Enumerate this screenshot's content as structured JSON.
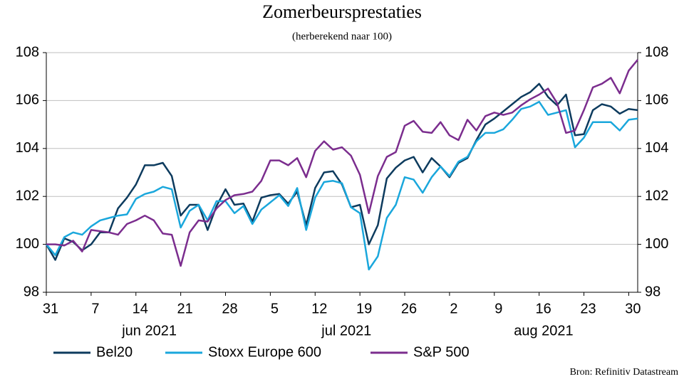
{
  "chart_data": {
    "type": "line",
    "title": "Zomerbeursprestaties",
    "subtitle": "(herberekend naar 100)",
    "source": "Bron: Refinitiv Datastream",
    "categories": [
      "31",
      null,
      null,
      null,
      null,
      "7",
      null,
      null,
      null,
      null,
      "14",
      null,
      null,
      null,
      null,
      "21",
      null,
      null,
      null,
      null,
      "28",
      null,
      null,
      null,
      null,
      "5",
      null,
      null,
      null,
      null,
      "12",
      null,
      null,
      null,
      null,
      "19",
      null,
      null,
      null,
      null,
      "26",
      null,
      null,
      null,
      null,
      "2",
      null,
      null,
      null,
      null,
      "9",
      null,
      null,
      null,
      null,
      "16",
      null,
      null,
      null,
      null,
      "23",
      null,
      null,
      null,
      null,
      "30",
      null
    ],
    "month_labels": [
      "jun 2021",
      "jul 2021",
      "aug 2021"
    ],
    "ylim": [
      98,
      108
    ],
    "yticks": [
      98,
      100,
      102,
      104,
      106,
      108
    ],
    "y2lim": [
      98,
      108
    ],
    "y2ticks": [
      98,
      100,
      102,
      104,
      106,
      108
    ],
    "grid": true,
    "legend": "bottom",
    "series": [
      {
        "name": "Bel20",
        "color": "#0d3b5e",
        "values": [
          100,
          99.35,
          100.25,
          100.1,
          99.75,
          100.0,
          100.5,
          100.5,
          101.5,
          101.95,
          102.5,
          103.3,
          103.3,
          103.4,
          102.85,
          101.2,
          101.65,
          101.65,
          100.6,
          101.6,
          102.3,
          101.65,
          101.7,
          100.95,
          101.95,
          102.05,
          102.1,
          101.7,
          102.2,
          100.8,
          102.35,
          103.0,
          103.05,
          102.5,
          101.55,
          101.65,
          100.0,
          100.8,
          102.75,
          103.2,
          103.5,
          103.65,
          103.0,
          103.6,
          103.25,
          102.8,
          103.4,
          103.6,
          104.35,
          105.0,
          105.25,
          105.55,
          105.85,
          106.15,
          106.35,
          106.7,
          106.15,
          105.8,
          106.25,
          104.55,
          104.6,
          105.6,
          105.85,
          105.75,
          105.45,
          105.65,
          105.6
        ]
      },
      {
        "name": "Stoxx Europe 600",
        "color": "#1aa7dc",
        "values": [
          100,
          99.55,
          100.3,
          100.5,
          100.4,
          100.75,
          101.0,
          101.1,
          101.2,
          101.25,
          101.9,
          102.1,
          102.2,
          102.4,
          102.3,
          100.7,
          101.4,
          101.65,
          101.0,
          101.8,
          101.8,
          101.3,
          101.6,
          100.85,
          101.45,
          101.75,
          102.05,
          101.6,
          102.35,
          100.6,
          101.95,
          102.6,
          102.65,
          102.55,
          101.55,
          101.3,
          98.95,
          99.5,
          101.1,
          101.65,
          102.8,
          102.7,
          102.15,
          102.8,
          103.25,
          102.85,
          103.45,
          103.65,
          104.3,
          104.65,
          104.65,
          104.8,
          105.2,
          105.65,
          105.75,
          105.95,
          105.4,
          105.5,
          105.6,
          104.05,
          104.45,
          105.1,
          105.1,
          105.1,
          104.75,
          105.2,
          105.25
        ]
      },
      {
        "name": "S&P 500",
        "color": "#7b2d8e",
        "values": [
          100,
          100,
          99.95,
          100.15,
          99.7,
          100.6,
          100.55,
          100.5,
          100.4,
          100.85,
          101.0,
          101.2,
          101.0,
          100.45,
          100.4,
          99.1,
          100.5,
          101.0,
          100.95,
          101.5,
          101.85,
          102.05,
          102.1,
          102.2,
          102.65,
          103.5,
          103.5,
          103.3,
          103.6,
          102.8,
          103.9,
          104.3,
          103.95,
          104.05,
          103.7,
          102.9,
          101.3,
          102.85,
          103.65,
          103.85,
          104.95,
          105.15,
          104.7,
          104.65,
          105.1,
          104.55,
          104.35,
          105.2,
          104.75,
          105.35,
          105.5,
          105.4,
          105.5,
          105.8,
          106.05,
          106.25,
          106.5,
          105.9,
          104.65,
          104.75,
          105.6,
          106.55,
          106.7,
          106.95,
          106.3,
          107.25,
          107.7
        ]
      }
    ]
  }
}
